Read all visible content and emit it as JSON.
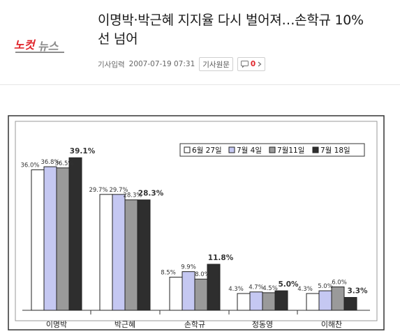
{
  "header": {
    "logo_text_a": "노컷",
    "logo_text_b": "뉴스",
    "headline_line1": "이명박·박근혜 지지율 다시 벌어져…손학규 10%",
    "headline_line2": "선 넘어",
    "meta_label": "기사입력",
    "meta_datetime": "2007-07-19 07:31",
    "original_button": "기사원문",
    "comment_count": "0",
    "colors": {
      "logo_red": "#e0252b",
      "logo_gray": "#8c8c8c",
      "comment_count": "#e0252b"
    },
    "icons": [
      "comment-icon",
      "chevron-right-icon"
    ]
  },
  "chart_data": {
    "type": "bar",
    "categories": [
      "이명박",
      "박근혜",
      "손학규",
      "정동영",
      "이해찬"
    ],
    "series": [
      {
        "name": "6월 27일",
        "values": [
          36.0,
          29.7,
          8.5,
          4.3,
          4.3
        ],
        "labels": [
          "36.0%",
          "29.7%",
          "8.5%",
          "4.3%",
          "4.3%"
        ]
      },
      {
        "name": "7월 4일",
        "values": [
          36.8,
          29.7,
          9.9,
          4.7,
          5.0
        ],
        "labels": [
          "36.8%",
          "29.7%",
          "9.9%",
          "4.7%",
          "5.0%"
        ]
      },
      {
        "name": "7월11일",
        "values": [
          36.5,
          28.3,
          8.0,
          4.5,
          6.0
        ],
        "labels": [
          "36.5%",
          "28.3%",
          "8.0%",
          "4.5%",
          "6.0%"
        ]
      },
      {
        "name": "7월 18일",
        "values": [
          39.1,
          28.3,
          11.8,
          5.0,
          3.3
        ],
        "labels": [
          "39.1%",
          "28.3%",
          "11.8%",
          "5.0%",
          "3.3%"
        ]
      }
    ],
    "highlight_series": 3,
    "ylim": [
      0,
      42
    ],
    "grid": false,
    "legend_position": "top-right",
    "series_colors": [
      "#ffffff",
      "#c5c8f2",
      "#9a9a9a",
      "#2e2e2e"
    ]
  }
}
